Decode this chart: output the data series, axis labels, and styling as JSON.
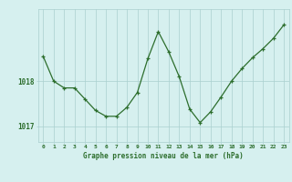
{
  "hours": [
    0,
    1,
    2,
    3,
    4,
    5,
    6,
    7,
    8,
    9,
    10,
    11,
    12,
    13,
    14,
    15,
    16,
    17,
    18,
    19,
    20,
    21,
    22,
    23
  ],
  "pressure": [
    1018.55,
    1018.0,
    1017.85,
    1017.85,
    1017.6,
    1017.35,
    1017.22,
    1017.22,
    1017.42,
    1017.75,
    1018.5,
    1019.1,
    1018.65,
    1018.1,
    1017.38,
    1017.08,
    1017.32,
    1017.65,
    1018.0,
    1018.28,
    1018.52,
    1018.72,
    1018.95,
    1019.25
  ],
  "line_color": "#2d6e2d",
  "marker": "+",
  "bg_color": "#d6f0ef",
  "grid_color": "#aacfcf",
  "xlabel": "Graphe pression niveau de la mer (hPa)",
  "xlabel_color": "#2d6e2d",
  "tick_color": "#2d6e2d",
  "ytick_labels": [
    "1017",
    "1018"
  ],
  "ytick_values": [
    1017.0,
    1018.0
  ],
  "ylim": [
    1016.65,
    1019.6
  ],
  "xlim": [
    -0.5,
    23.5
  ]
}
